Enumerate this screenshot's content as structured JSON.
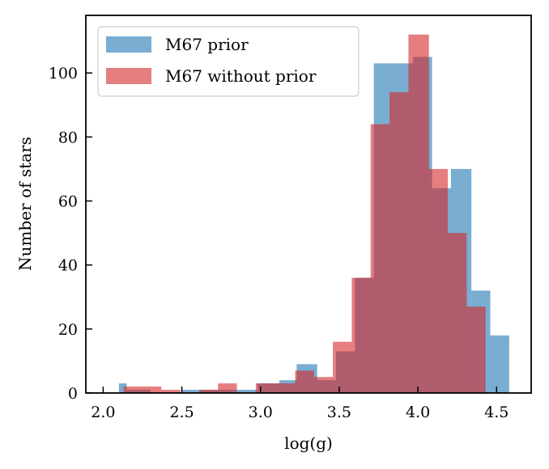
{
  "chart_data": {
    "type": "bar",
    "subtype": "histogram",
    "title": "",
    "xlabel": "log(g)",
    "ylabel": "Number of stars",
    "xlim": [
      1.89,
      4.72
    ],
    "ylim": [
      0,
      118
    ],
    "xticks": [
      2.0,
      2.5,
      3.0,
      3.5,
      4.0,
      4.5
    ],
    "xtick_labels": [
      "2.0",
      "2.5",
      "3.0",
      "3.5",
      "4.0",
      "4.5"
    ],
    "yticks": [
      0,
      20,
      40,
      60,
      80,
      100
    ],
    "ytick_labels": [
      "0",
      "20",
      "40",
      "60",
      "80",
      "100"
    ],
    "grid": false,
    "legend_position": "top-left",
    "series": [
      {
        "name": "M67 prior",
        "color": "#1f77b4",
        "opacity": 0.6,
        "bin_edges": [
          2.02,
          2.14,
          2.26,
          2.38,
          2.5,
          2.62,
          2.74,
          2.86,
          2.98,
          3.1,
          3.22,
          3.34,
          3.46,
          3.58,
          3.7,
          3.82,
          3.94,
          4.06,
          4.18,
          4.3,
          4.42,
          4.54
        ],
        "bin_edges_alt": [
          2.09,
          2.21,
          2.33,
          2.45,
          2.57,
          2.69,
          2.81,
          2.93,
          3.05,
          3.17,
          3.29,
          3.41,
          3.53,
          3.65,
          3.77,
          3.89,
          4.01,
          4.13,
          4.25,
          4.37,
          4.49,
          4.61
        ],
        "bins": [
          {
            "x0": 2.02,
            "x1": 2.1,
            "count": 0
          },
          {
            "x0": 2.1,
            "x1": 2.15,
            "count": 3
          },
          {
            "x0": 2.15,
            "x1": 2.25,
            "count": 1
          },
          {
            "x0": 2.25,
            "x1": 2.3,
            "count": 1
          },
          {
            "x0": 2.3,
            "x1": 2.5,
            "count": 0
          },
          {
            "x0": 2.5,
            "x1": 2.6,
            "count": 1
          },
          {
            "x0": 2.6,
            "x1": 2.75,
            "count": 1
          },
          {
            "x0": 2.75,
            "x1": 2.85,
            "count": 1
          },
          {
            "x0": 2.85,
            "x1": 2.98,
            "count": 1
          },
          {
            "x0": 2.98,
            "x1": 3.12,
            "count": 3
          },
          {
            "x0": 3.12,
            "x1": 3.23,
            "count": 4
          },
          {
            "x0": 3.23,
            "x1": 3.36,
            "count": 9
          },
          {
            "x0": 3.36,
            "x1": 3.48,
            "count": 4
          },
          {
            "x0": 3.48,
            "x1": 3.6,
            "count": 13
          },
          {
            "x0": 3.6,
            "x1": 3.72,
            "count": 36
          },
          {
            "x0": 3.72,
            "x1": 3.85,
            "count": 103
          },
          {
            "x0": 3.85,
            "x1": 3.97,
            "count": 103
          },
          {
            "x0": 3.97,
            "x1": 4.09,
            "count": 105
          },
          {
            "x0": 4.09,
            "x1": 4.21,
            "count": 64
          },
          {
            "x0": 4.21,
            "x1": 4.34,
            "count": 70
          },
          {
            "x0": 4.34,
            "x1": 4.46,
            "count": 32
          },
          {
            "x0": 4.46,
            "x1": 4.58,
            "count": 18
          }
        ]
      },
      {
        "name": "M67 without prior",
        "color": "#d62728",
        "opacity": 0.6,
        "bins": [
          {
            "x0": 2.06,
            "x1": 2.13,
            "count": 0
          },
          {
            "x0": 2.13,
            "x1": 2.22,
            "count": 2
          },
          {
            "x0": 2.22,
            "x1": 2.37,
            "count": 2
          },
          {
            "x0": 2.37,
            "x1": 2.49,
            "count": 1
          },
          {
            "x0": 2.49,
            "x1": 2.61,
            "count": 0
          },
          {
            "x0": 2.61,
            "x1": 2.73,
            "count": 1
          },
          {
            "x0": 2.73,
            "x1": 2.85,
            "count": 3
          },
          {
            "x0": 2.85,
            "x1": 2.97,
            "count": 0
          },
          {
            "x0": 2.97,
            "x1": 3.09,
            "count": 3
          },
          {
            "x0": 3.09,
            "x1": 3.22,
            "count": 3
          },
          {
            "x0": 3.22,
            "x1": 3.34,
            "count": 7
          },
          {
            "x0": 3.34,
            "x1": 3.46,
            "count": 5
          },
          {
            "x0": 3.46,
            "x1": 3.58,
            "count": 16
          },
          {
            "x0": 3.58,
            "x1": 3.7,
            "count": 36
          },
          {
            "x0": 3.7,
            "x1": 3.82,
            "count": 84
          },
          {
            "x0": 3.82,
            "x1": 3.94,
            "count": 94
          },
          {
            "x0": 3.94,
            "x1": 4.07,
            "count": 112
          },
          {
            "x0": 4.07,
            "x1": 4.19,
            "count": 70
          },
          {
            "x0": 4.19,
            "x1": 4.31,
            "count": 50
          },
          {
            "x0": 4.31,
            "x1": 4.43,
            "count": 27
          },
          {
            "x0": 4.43,
            "x1": 4.5,
            "count": 0
          }
        ]
      }
    ]
  }
}
